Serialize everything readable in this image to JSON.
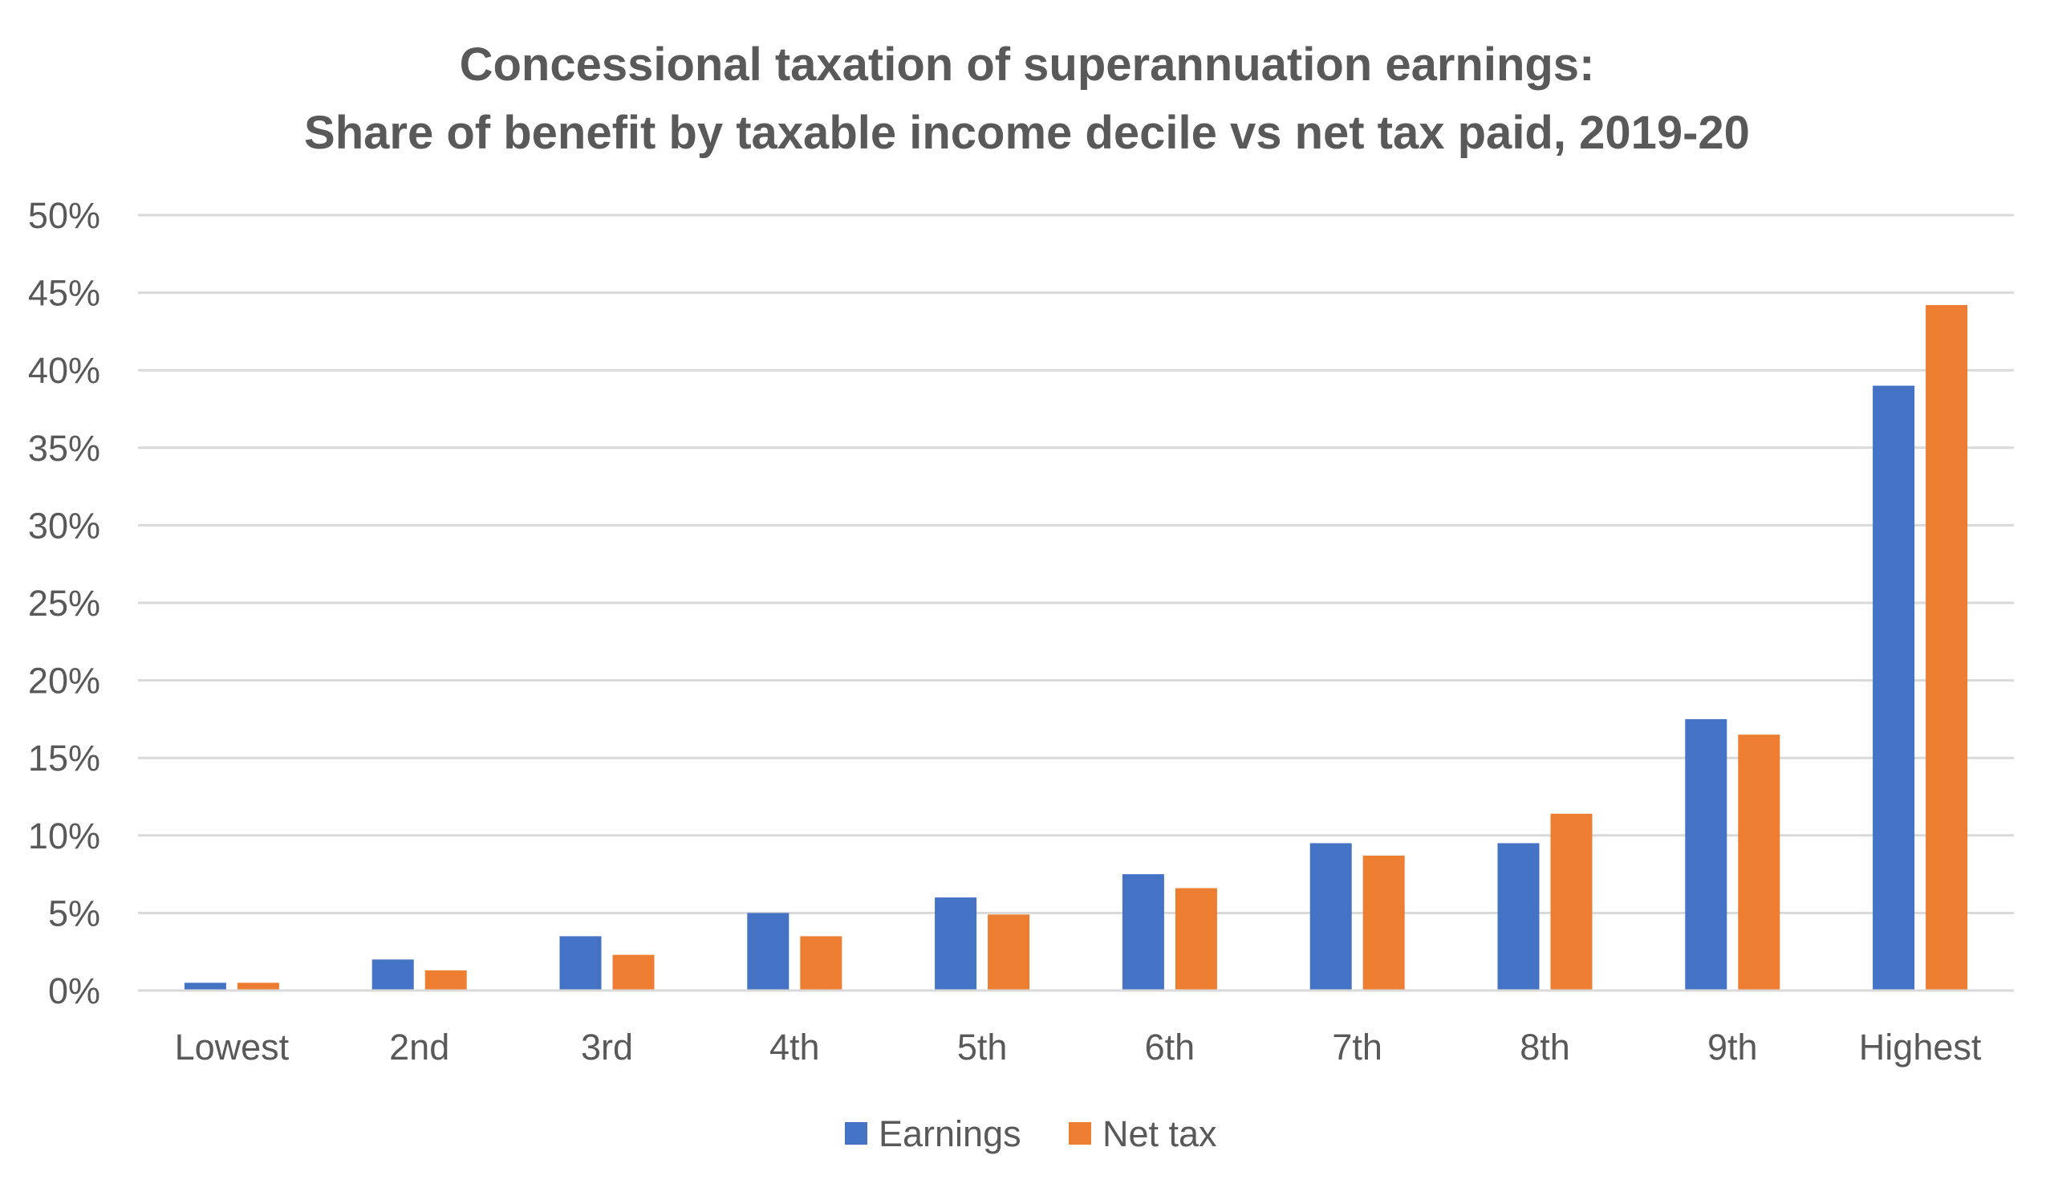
{
  "chart_data": {
    "type": "bar",
    "title": "Concessional taxation of superannuation earnings:",
    "subtitle": "Share of benefit by taxable income decile vs net tax paid, 2019-20",
    "xlabel": "",
    "ylabel": "",
    "categories": [
      "Lowest",
      "2nd",
      "3rd",
      "4th",
      "5th",
      "6th",
      "7th",
      "8th",
      "9th",
      "Highest"
    ],
    "series": [
      {
        "name": "Earnings",
        "color": "#4472c4",
        "values": [
          0.5,
          2.0,
          3.5,
          5.0,
          6.0,
          7.5,
          9.5,
          9.5,
          17.5,
          39.0
        ]
      },
      {
        "name": "Net tax",
        "color": "#ed7d31",
        "values": [
          0.5,
          1.3,
          2.3,
          3.5,
          4.9,
          6.6,
          8.7,
          11.4,
          16.5,
          44.2
        ]
      }
    ],
    "ylim": [
      0,
      50
    ],
    "yticks": [
      "0%",
      "5%",
      "10%",
      "15%",
      "20%",
      "25%",
      "30%",
      "35%",
      "40%",
      "45%",
      "50%"
    ],
    "grid": true,
    "legend_position": "bottom"
  }
}
